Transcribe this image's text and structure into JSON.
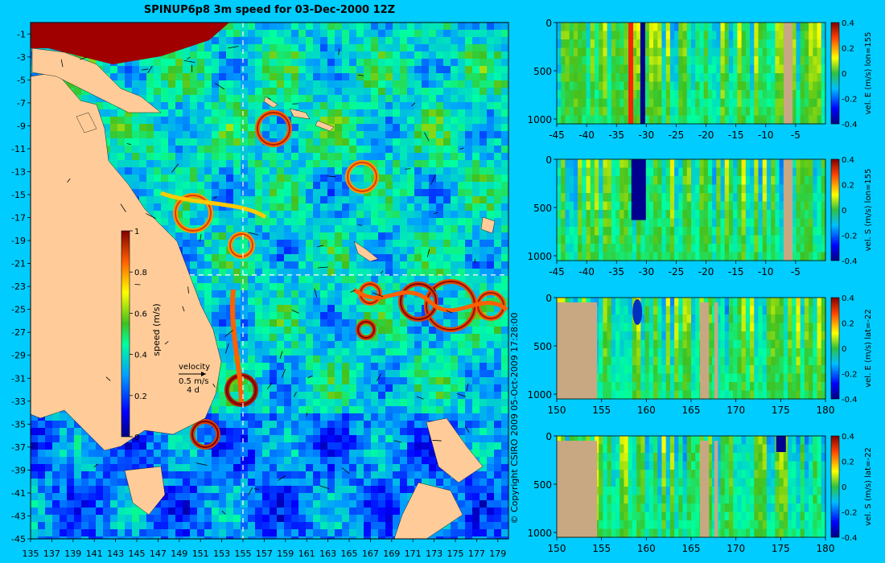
{
  "title": "SPINUP6p8 3m speed for 03-Dec-2000 12Z",
  "copyright": "© Copyright CSIRO 2009   05-Oct-2009 17:28:00",
  "colors": {
    "background": "#00ccff",
    "land": "#ffcc99",
    "section_land": "#c8a882",
    "guide_line": "#ffffff"
  },
  "chart_data": [
    {
      "type": "heatmap",
      "name": "surface speed map",
      "xlim": [
        135,
        180
      ],
      "ylim": [
        -45,
        0
      ],
      "x_ticks": [
        135,
        137,
        139,
        141,
        143,
        145,
        147,
        149,
        151,
        153,
        155,
        157,
        159,
        161,
        163,
        165,
        167,
        169,
        171,
        173,
        175,
        177,
        179
      ],
      "y_ticks": [
        -1,
        -3,
        -5,
        -7,
        -9,
        -11,
        -13,
        -15,
        -17,
        -19,
        -21,
        -23,
        -25,
        -27,
        -29,
        -31,
        -33,
        -35,
        -37,
        -39,
        -41,
        -43,
        -45
      ],
      "colorbar": {
        "label": "speed (m/s)",
        "range": [
          0,
          1
        ],
        "ticks": [
          0,
          0.2,
          0.4,
          0.6,
          0.8,
          1
        ]
      },
      "section_lines": {
        "lon": 155,
        "lat": -22
      },
      "velocity_key": {
        "label": "velocity",
        "speed": "0.5 m/s",
        "duration": "4 d"
      }
    },
    {
      "type": "heatmap",
      "name": "vel E section lon 155",
      "xlim": [
        -45,
        0
      ],
      "ylim": [
        1050,
        0
      ],
      "x_ticks": [
        -45,
        -40,
        -35,
        -30,
        -25,
        -20,
        -15,
        -10,
        -5
      ],
      "y_ticks": [
        0,
        500,
        1000
      ],
      "colorbar": {
        "label": "vel. E (m/s) lon=155",
        "range": [
          -0.4,
          0.4
        ],
        "ticks": [
          0.4,
          0.2,
          0,
          -0.2,
          -0.4
        ]
      }
    },
    {
      "type": "heatmap",
      "name": "vel S section lon 155",
      "xlim": [
        -45,
        0
      ],
      "ylim": [
        1050,
        0
      ],
      "x_ticks": [
        -45,
        -40,
        -35,
        -30,
        -25,
        -20,
        -15,
        -10,
        -5
      ],
      "y_ticks": [
        0,
        500,
        1000
      ],
      "colorbar": {
        "label": "vel. S (m/s) lon=155",
        "range": [
          -0.4,
          0.4
        ],
        "ticks": [
          0.4,
          0.2,
          0,
          -0.2,
          -0.4
        ]
      }
    },
    {
      "type": "heatmap",
      "name": "vel E section lat -22",
      "xlim": [
        150,
        180
      ],
      "ylim": [
        1050,
        0
      ],
      "x_ticks": [
        150,
        155,
        160,
        165,
        170,
        175,
        180
      ],
      "y_ticks": [
        0,
        500,
        1000
      ],
      "colorbar": {
        "label": "vel. E (m/s) lat=-22",
        "range": [
          -0.4,
          0.4
        ],
        "ticks": [
          0.4,
          0.2,
          0,
          -0.2,
          -0.4
        ]
      }
    },
    {
      "type": "heatmap",
      "name": "vel S section lat -22",
      "xlim": [
        150,
        180
      ],
      "ylim": [
        1050,
        0
      ],
      "x_ticks": [
        150,
        155,
        160,
        165,
        170,
        175,
        180
      ],
      "y_ticks": [
        0,
        500,
        1000
      ],
      "colorbar": {
        "label": "vel. S (m/s) lat=-22",
        "range": [
          -0.4,
          0.4
        ],
        "ticks": [
          0.4,
          0.2,
          0,
          -0.2,
          -0.4
        ]
      }
    }
  ]
}
